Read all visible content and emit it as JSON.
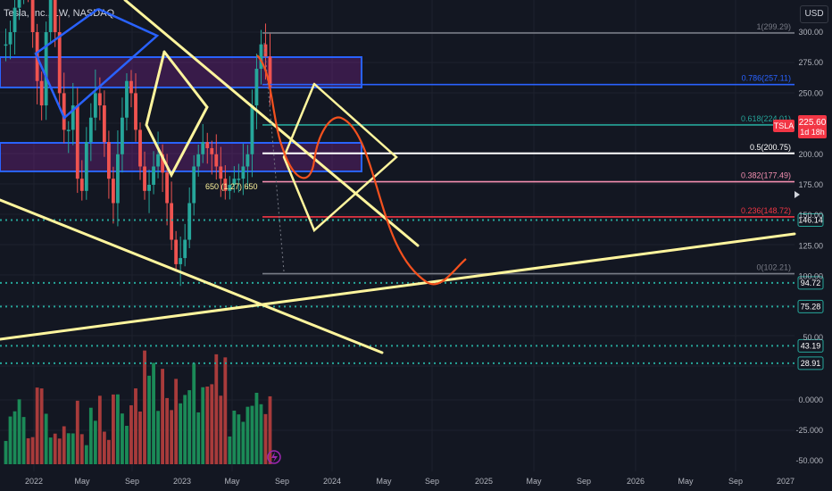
{
  "header": {
    "symbol_title": "Tesla, Inc., 1W, NASDAQ",
    "currency": "USD"
  },
  "chart_data": {
    "type": "bar",
    "symbol": "TSLA",
    "price_axis_ticks": [
      300,
      275,
      250,
      225,
      200,
      175,
      150,
      125,
      100,
      50
    ],
    "volume_axis_ticks": [
      "0.0000",
      "-25.000",
      "-50.000"
    ],
    "time_axis_labels": [
      "2022",
      "May",
      "Sep",
      "2023",
      "May",
      "Sep",
      "2024",
      "May",
      "Sep",
      "2025",
      "May",
      "Sep",
      "2026",
      "May",
      "Sep",
      "2027"
    ],
    "last_price": {
      "label": "TSLA",
      "value": "225.60",
      "countdown": "1d 18h"
    },
    "fib_levels": [
      {
        "label": "1(299.29)",
        "value": 299.29,
        "color": "#787b86"
      },
      {
        "label": "0.786(257.11)",
        "value": 257.11,
        "color": "#2962ff"
      },
      {
        "label": "0.618(224.01)",
        "value": 224.01,
        "color": "#26a69a"
      },
      {
        "label": "0.5(200.75)",
        "value": 200.75,
        "color": "#ffffff"
      },
      {
        "label": "0.382(177.49)",
        "value": 177.49,
        "color": "#f48fb1"
      },
      {
        "label": "0.236(148.72)",
        "value": 148.72,
        "color": "#f23645"
      },
      {
        "label": "0(102.21)",
        "value": 102.21,
        "color": "#787b86"
      }
    ],
    "horizontal_levels": [
      "146.14",
      "94.72",
      "75.28",
      "43.19",
      "28.91"
    ],
    "annotation": "650 (1.27) 650",
    "colors": {
      "up": "#26a69a",
      "down": "#ef5350",
      "zone": "#2962ff",
      "trendline": "#fff59d",
      "projection": "#f4511e",
      "dotted_level": "#26a69a",
      "background": "#131722"
    }
  }
}
